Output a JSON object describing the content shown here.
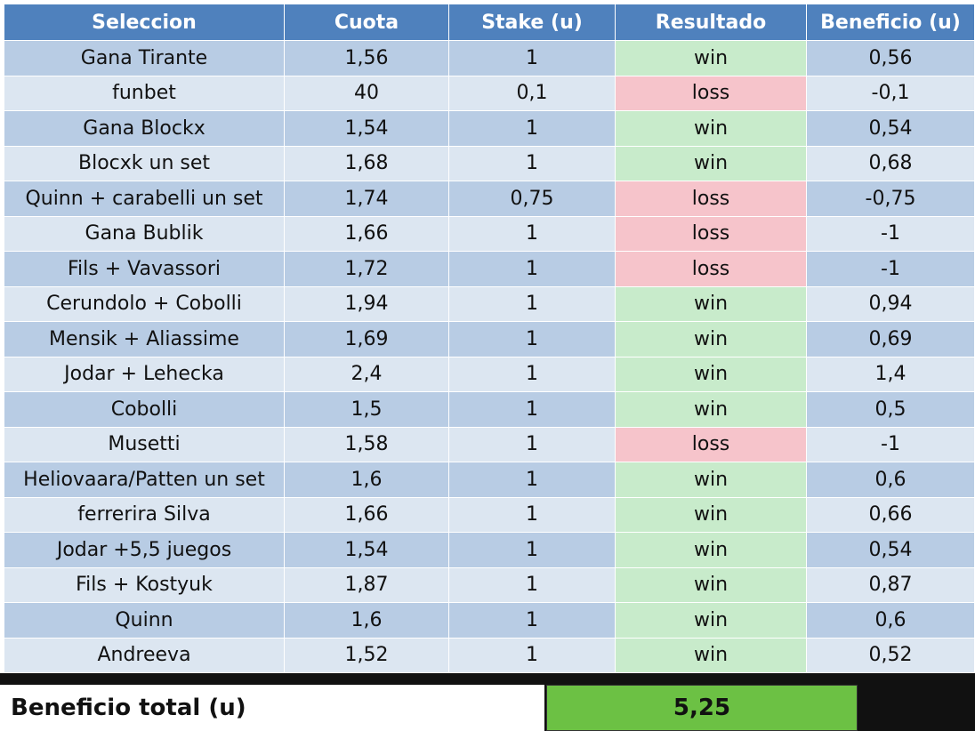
{
  "table": {
    "headers": [
      "Seleccion",
      "Cuota",
      "Stake (u)",
      "Resultado",
      "Beneficio (u)"
    ],
    "rows": [
      [
        "Gana Tirante",
        "1,56",
        "1",
        "win",
        "0,56"
      ],
      [
        "funbet",
        "40",
        "0,1",
        "loss",
        "-0,1"
      ],
      [
        "Gana Blockx",
        "1,54",
        "1",
        "win",
        "0,54"
      ],
      [
        "Blocxk un set",
        "1,68",
        "1",
        "win",
        "0,68"
      ],
      [
        "Quinn + carabelli un set",
        "1,74",
        "0,75",
        "loss",
        "-0,75"
      ],
      [
        "Gana Bublik",
        "1,66",
        "1",
        "loss",
        "-1"
      ],
      [
        "Fils + Vavassori",
        "1,72",
        "1",
        "loss",
        "-1"
      ],
      [
        "Cerundolo + Cobolli",
        "1,94",
        "1",
        "win",
        "0,94"
      ],
      [
        "Mensik + Aliassime",
        "1,69",
        "1",
        "win",
        "0,69"
      ],
      [
        "Jodar + Lehecka",
        "2,4",
        "1",
        "win",
        "1,4"
      ],
      [
        "Cobolli",
        "1,5",
        "1",
        "win",
        "0,5"
      ],
      [
        "Musetti",
        "1,58",
        "1",
        "loss",
        "-1"
      ],
      [
        "Heliovaara/Patten un set",
        "1,6",
        "1",
        "win",
        "0,6"
      ],
      [
        "ferrerira Silva",
        "1,66",
        "1",
        "win",
        "0,66"
      ],
      [
        "Jodar +5,5 juegos",
        "1,54",
        "1",
        "win",
        "0,54"
      ],
      [
        "Fils + Kostyuk",
        "1,87",
        "1",
        "win",
        "0,87"
      ],
      [
        "Quinn",
        "1,6",
        "1",
        "win",
        "0,6"
      ],
      [
        "Andreeva",
        "1,52",
        "1",
        "win",
        "0,52"
      ]
    ]
  },
  "total": {
    "label": "Beneficio total (u)",
    "value": "5,25"
  }
}
